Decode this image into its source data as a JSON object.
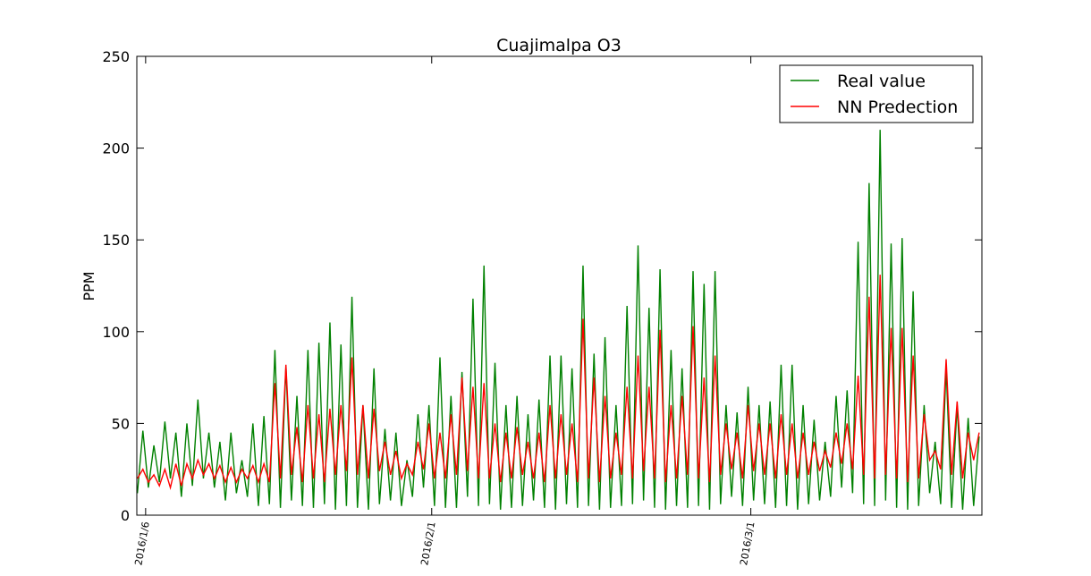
{
  "chart_data": {
    "type": "line",
    "title": "Cuajimalpa O3",
    "y_label": "PPM",
    "x": [
      5.25,
      5.75,
      6.25,
      6.75,
      7.25,
      7.75,
      8.25,
      8.75,
      9.25,
      9.75,
      10.25,
      10.75,
      11.25,
      11.75,
      12.25,
      12.75,
      13.25,
      13.75,
      14.25,
      14.75,
      15.25,
      15.75,
      16.25,
      16.75,
      17.25,
      17.75,
      18.25,
      18.75,
      19.25,
      19.75,
      20.25,
      20.75,
      21.25,
      21.75,
      22.25,
      22.75,
      23.25,
      23.75,
      24.25,
      24.75,
      25.25,
      25.75,
      26.25,
      26.75,
      27.25,
      27.75,
      28.25,
      28.75,
      29.25,
      29.75,
      30.25,
      30.75,
      31.25,
      31.75,
      32.25,
      32.75,
      33.25,
      33.75,
      34.25,
      34.75,
      35.25,
      35.75,
      36.25,
      36.75,
      37.25,
      37.75,
      38.25,
      38.75,
      39.25,
      39.75,
      40.25,
      40.75,
      41.25,
      41.75,
      42.25,
      42.75,
      43.25,
      43.75,
      44.25,
      44.75,
      45.25,
      45.75,
      46.25,
      46.75,
      47.25,
      47.75,
      48.25,
      48.75,
      49.25,
      49.75,
      50.25,
      50.75,
      51.25,
      51.75,
      52.25,
      52.75,
      53.25,
      53.75,
      54.25,
      54.75,
      55.25,
      55.75,
      56.25,
      56.75,
      57.25,
      57.75,
      58.25,
      58.75,
      59.25,
      59.75,
      60.25,
      60.75,
      61.25,
      61.75,
      62.25,
      62.75,
      63.25,
      63.75,
      64.25,
      64.75,
      65.25,
      65.75,
      66.25,
      66.75,
      67.25,
      67.75,
      68.25,
      68.75,
      69.25,
      69.75,
      70.25,
      70.75,
      71.25,
      71.75,
      72.25,
      72.75,
      73.25,
      73.75,
      74.25,
      74.75,
      75.25,
      75.75,
      76.25,
      76.75,
      77.25,
      77.75,
      78.25,
      78.75,
      79.25,
      79.75,
      80.25,
      80.75,
      81.25,
      81.75
    ],
    "series": [
      {
        "name": "Real value",
        "color": "#008000",
        "values": [
          12,
          46,
          15,
          38,
          18,
          51,
          20,
          45,
          10,
          50,
          16,
          63,
          20,
          45,
          15,
          40,
          8,
          45,
          12,
          30,
          10,
          50,
          5,
          54,
          6,
          90,
          4,
          81,
          8,
          65,
          5,
          90,
          4,
          94,
          6,
          105,
          3,
          93,
          5,
          119,
          4,
          60,
          3,
          80,
          6,
          47,
          8,
          45,
          5,
          30,
          10,
          55,
          15,
          60,
          5,
          86,
          4,
          65,
          4,
          78,
          10,
          118,
          5,
          136,
          6,
          83,
          3,
          60,
          4,
          65,
          5,
          55,
          8,
          63,
          4,
          87,
          3,
          87,
          6,
          80,
          4,
          136,
          5,
          88,
          3,
          97,
          4,
          60,
          5,
          114,
          6,
          147,
          8,
          113,
          4,
          134,
          3,
          90,
          5,
          80,
          4,
          133,
          5,
          126,
          3,
          133,
          6,
          60,
          10,
          56,
          5,
          70,
          8,
          60,
          6,
          62,
          4,
          82,
          5,
          82,
          3,
          60,
          6,
          52,
          8,
          40,
          10,
          65,
          15,
          68,
          12,
          149,
          6,
          181,
          5,
          210,
          8,
          148,
          4,
          151,
          3,
          122,
          5,
          60,
          12,
          40,
          6,
          80,
          4,
          60,
          3,
          53,
          5,
          43
        ]
      },
      {
        "name": "NN Predection",
        "color": "#ff0000",
        "values": [
          20,
          25,
          18,
          22,
          16,
          25,
          15,
          28,
          16,
          28,
          20,
          30,
          22,
          28,
          20,
          27,
          18,
          26,
          18,
          25,
          20,
          27,
          18,
          28,
          18,
          72,
          20,
          82,
          22,
          48,
          18,
          60,
          20,
          55,
          18,
          58,
          22,
          60,
          24,
          86,
          22,
          60,
          20,
          58,
          24,
          40,
          22,
          35,
          20,
          28,
          22,
          40,
          25,
          50,
          20,
          45,
          20,
          55,
          22,
          75,
          24,
          70,
          20,
          72,
          20,
          50,
          18,
          45,
          20,
          48,
          22,
          40,
          20,
          45,
          18,
          60,
          20,
          55,
          22,
          50,
          18,
          107,
          20,
          75,
          18,
          65,
          20,
          45,
          22,
          70,
          20,
          87,
          24,
          70,
          20,
          101,
          18,
          60,
          20,
          65,
          22,
          103,
          20,
          75,
          18,
          87,
          22,
          50,
          25,
          45,
          20,
          60,
          24,
          50,
          22,
          50,
          20,
          55,
          22,
          50,
          20,
          45,
          22,
          40,
          24,
          35,
          26,
          45,
          28,
          50,
          25,
          76,
          22,
          119,
          20,
          131,
          22,
          102,
          20,
          102,
          18,
          87,
          20,
          55,
          30,
          35,
          25,
          85,
          22,
          62,
          20,
          45,
          30,
          45
        ]
      }
    ],
    "xlim": [
      5.2,
      82
    ],
    "xticks": [
      {
        "value": 6,
        "label": "2016/1/6"
      },
      {
        "value": 32,
        "label": "2016/2/1"
      },
      {
        "value": 61,
        "label": "2016/3/1"
      }
    ],
    "ylim": [
      0,
      250
    ],
    "yticks": [
      0,
      50,
      100,
      150,
      200,
      250
    ],
    "legend": "upper right"
  }
}
